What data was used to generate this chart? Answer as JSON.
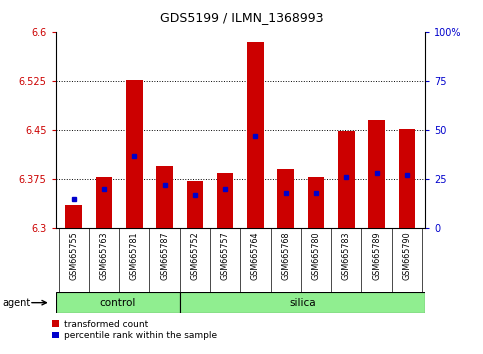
{
  "title": "GDS5199 / ILMN_1368993",
  "samples": [
    "GSM665755",
    "GSM665763",
    "GSM665781",
    "GSM665787",
    "GSM665752",
    "GSM665757",
    "GSM665764",
    "GSM665768",
    "GSM665780",
    "GSM665783",
    "GSM665789",
    "GSM665790"
  ],
  "groups": [
    "control",
    "control",
    "control",
    "control",
    "silica",
    "silica",
    "silica",
    "silica",
    "silica",
    "silica",
    "silica",
    "silica"
  ],
  "transformed_count": [
    6.335,
    6.378,
    6.527,
    6.395,
    6.372,
    6.385,
    6.585,
    6.39,
    6.378,
    6.448,
    6.465,
    6.452
  ],
  "percentile_rank": [
    15,
    20,
    37,
    22,
    17,
    20,
    47,
    18,
    18,
    26,
    28,
    27
  ],
  "ylim_left": [
    6.3,
    6.6
  ],
  "ylim_right": [
    0,
    100
  ],
  "yticks_left": [
    6.3,
    6.375,
    6.45,
    6.525,
    6.6
  ],
  "yticks_right": [
    0,
    25,
    50,
    75,
    100
  ],
  "bar_color": "#cc0000",
  "marker_color": "#0000cc",
  "bar_width": 0.55,
  "base_value": 6.3,
  "control_color": "#90ee90",
  "silica_color": "#90ee90",
  "bg_color": "#ffffff",
  "tick_label_color_left": "#cc0000",
  "tick_label_color_right": "#0000cc",
  "title_fontsize": 9,
  "tick_fontsize": 7,
  "label_fontsize": 7,
  "legend_transformed": "transformed count",
  "legend_percentile": "percentile rank within the sample",
  "agent_label": "agent",
  "n_control": 4,
  "n_total": 12
}
